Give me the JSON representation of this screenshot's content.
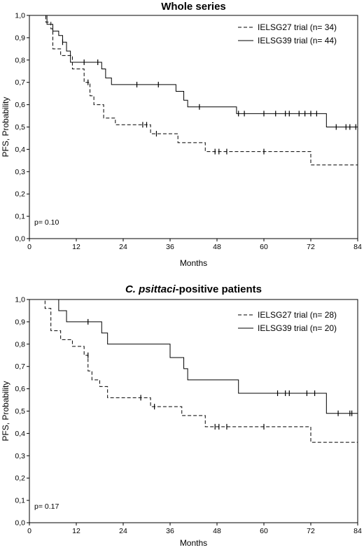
{
  "chart_data": [
    {
      "type": "line",
      "title": "Whole series",
      "xlabel": "Months",
      "ylabel": "PFS, Probability",
      "xlim": [
        0,
        84
      ],
      "ylim": [
        0,
        1
      ],
      "x_ticks": [
        "0",
        "12",
        "24",
        "36",
        "48",
        "60",
        "72",
        "84"
      ],
      "y_ticks": [
        "0,0",
        "0,1",
        "0,2",
        "0,3",
        "0,4",
        "0,5",
        "0,6",
        "0,7",
        "0,8",
        "0,9",
        "1,0"
      ],
      "legend_position": "top-right",
      "annotation": "p= 0.10",
      "series": [
        {
          "name": "IELSG27 trial (n= 34)",
          "style": "dashed",
          "steps": [
            [
              0,
              1.0
            ],
            [
              4.2,
              0.97
            ],
            [
              5.5,
              0.94
            ],
            [
              6.0,
              0.85
            ],
            [
              8.0,
              0.82
            ],
            [
              11.0,
              0.76
            ],
            [
              14.0,
              0.7
            ],
            [
              15.5,
              0.64
            ],
            [
              16.5,
              0.6
            ],
            [
              19.0,
              0.54
            ],
            [
              22.0,
              0.51
            ],
            [
              31.0,
              0.47
            ],
            [
              38.0,
              0.43
            ],
            [
              45.0,
              0.39
            ],
            [
              72.0,
              0.33
            ],
            [
              84.0,
              0.33
            ]
          ],
          "censored": [
            [
              15.0,
              0.7
            ],
            [
              29.0,
              0.51
            ],
            [
              30.0,
              0.51
            ],
            [
              32.5,
              0.47
            ],
            [
              47.5,
              0.39
            ],
            [
              48.5,
              0.39
            ],
            [
              50.5,
              0.39
            ],
            [
              60.0,
              0.39
            ]
          ]
        },
        {
          "name": "IELSG39 trial (n= 44)",
          "style": "solid",
          "steps": [
            [
              0,
              1.0
            ],
            [
              4.5,
              0.96
            ],
            [
              6.0,
              0.93
            ],
            [
              7.5,
              0.91
            ],
            [
              8.5,
              0.88
            ],
            [
              9.5,
              0.84
            ],
            [
              10.5,
              0.79
            ],
            [
              18.5,
              0.76
            ],
            [
              19.5,
              0.72
            ],
            [
              21.0,
              0.69
            ],
            [
              37.5,
              0.66
            ],
            [
              39.5,
              0.62
            ],
            [
              40.5,
              0.59
            ],
            [
              53.0,
              0.56
            ],
            [
              76.0,
              0.5
            ],
            [
              84.0,
              0.5
            ]
          ],
          "censored": [
            [
              8.5,
              0.88
            ],
            [
              14.0,
              0.79
            ],
            [
              17.5,
              0.79
            ],
            [
              27.5,
              0.69
            ],
            [
              33.0,
              0.69
            ],
            [
              43.5,
              0.59
            ],
            [
              53.5,
              0.56
            ],
            [
              55.0,
              0.56
            ],
            [
              60.0,
              0.56
            ],
            [
              63.0,
              0.56
            ],
            [
              65.5,
              0.56
            ],
            [
              66.5,
              0.56
            ],
            [
              69.0,
              0.56
            ],
            [
              70.5,
              0.56
            ],
            [
              72.0,
              0.56
            ],
            [
              73.5,
              0.56
            ],
            [
              78.5,
              0.5
            ],
            [
              81.0,
              0.5
            ],
            [
              82.0,
              0.5
            ],
            [
              83.5,
              0.5
            ]
          ]
        }
      ]
    },
    {
      "type": "line",
      "title_italic": "C. psittaci",
      "title": "-positive patients",
      "xlabel": "Months",
      "ylabel": "PFS, Probability",
      "xlim": [
        0,
        84
      ],
      "ylim": [
        0,
        1
      ],
      "x_ticks": [
        "0",
        "12",
        "24",
        "36",
        "48",
        "60",
        "72",
        "84"
      ],
      "y_ticks": [
        "0,0",
        "0,1",
        "0,2",
        "0,3",
        "0,4",
        "0,5",
        "0,6",
        "0,7",
        "0,8",
        "0,9",
        "1,0"
      ],
      "legend_position": "top-right",
      "annotation": "p= 0.17",
      "series": [
        {
          "name": "IELSG27 trial (n= 28)",
          "style": "dashed",
          "steps": [
            [
              0,
              1.0
            ],
            [
              4.0,
              0.96
            ],
            [
              5.5,
              0.86
            ],
            [
              8.0,
              0.82
            ],
            [
              11.0,
              0.79
            ],
            [
              14.0,
              0.75
            ],
            [
              15.0,
              0.68
            ],
            [
              16.0,
              0.64
            ],
            [
              18.0,
              0.61
            ],
            [
              20.0,
              0.56
            ],
            [
              29.0,
              0.56
            ],
            [
              31.0,
              0.52
            ],
            [
              39.0,
              0.48
            ],
            [
              45.0,
              0.43
            ],
            [
              72.0,
              0.36
            ],
            [
              84.0,
              0.36
            ]
          ],
          "censored": [
            [
              15.0,
              0.75
            ],
            [
              28.5,
              0.56
            ],
            [
              32.0,
              0.52
            ],
            [
              47.5,
              0.43
            ],
            [
              48.5,
              0.43
            ],
            [
              50.5,
              0.43
            ],
            [
              60.0,
              0.43
            ]
          ]
        },
        {
          "name": "IELSG39 trial (n= 20)",
          "style": "solid",
          "steps": [
            [
              0,
              1.0
            ],
            [
              7.5,
              0.95
            ],
            [
              9.5,
              0.9
            ],
            [
              18.5,
              0.85
            ],
            [
              20.0,
              0.8
            ],
            [
              36.0,
              0.74
            ],
            [
              39.5,
              0.69
            ],
            [
              40.5,
              0.64
            ],
            [
              53.5,
              0.58
            ],
            [
              76.0,
              0.49
            ],
            [
              84.0,
              0.49
            ]
          ],
          "censored": [
            [
              15.0,
              0.9
            ],
            [
              63.5,
              0.58
            ],
            [
              65.5,
              0.58
            ],
            [
              66.5,
              0.58
            ],
            [
              71.0,
              0.58
            ],
            [
              73.0,
              0.58
            ],
            [
              79.0,
              0.49
            ],
            [
              82.0,
              0.49
            ],
            [
              82.5,
              0.49
            ]
          ]
        }
      ]
    }
  ]
}
